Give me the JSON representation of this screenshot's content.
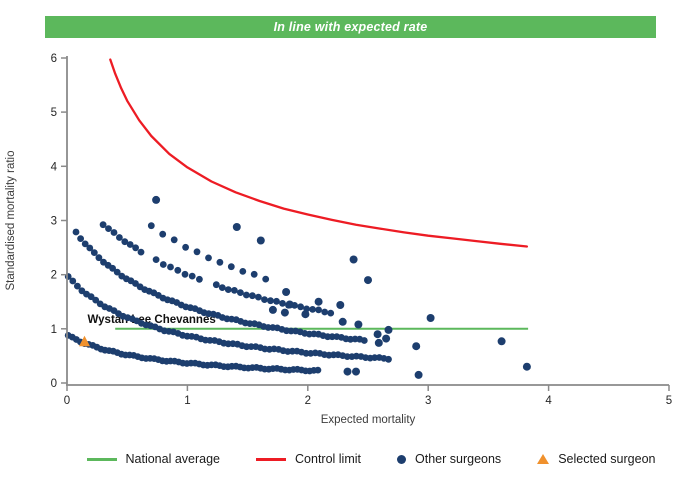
{
  "header": {
    "title": "In line with expected rate",
    "bg_color": "#5CB85C",
    "text_color": "#FFFFFF"
  },
  "chart_data": {
    "type": "scatter",
    "xlabel": "Expected mortality",
    "ylabel": "Standardised mortality ratio",
    "xlim": [
      0,
      5
    ],
    "ylim": [
      0,
      6
    ],
    "x_ticks": [
      0,
      1,
      2,
      3,
      4,
      5
    ],
    "y_ticks": [
      0,
      1,
      2,
      3,
      4,
      5,
      6
    ],
    "grid": false,
    "legend_position": "bottom",
    "annotation": {
      "text": "Wystan Lee Chevannes",
      "x": 0.17,
      "y": 1.18
    },
    "national_average": {
      "label": "National average",
      "y": 1.0,
      "x_start": 0.4,
      "x_end": 3.83,
      "color": "#5CB85C"
    },
    "control_limit": {
      "label": "Control limit",
      "color": "#ED1C24",
      "points": [
        [
          0.36,
          5.97
        ],
        [
          0.4,
          5.71
        ],
        [
          0.45,
          5.44
        ],
        [
          0.5,
          5.21
        ],
        [
          0.6,
          4.85
        ],
        [
          0.7,
          4.56
        ],
        [
          0.85,
          4.23
        ],
        [
          1.0,
          3.98
        ],
        [
          1.2,
          3.72
        ],
        [
          1.4,
          3.52
        ],
        [
          1.6,
          3.36
        ],
        [
          1.8,
          3.22
        ],
        [
          2.0,
          3.11
        ],
        [
          2.2,
          3.01
        ],
        [
          2.4,
          2.92
        ],
        [
          2.6,
          2.85
        ],
        [
          2.8,
          2.78
        ],
        [
          3.0,
          2.72
        ],
        [
          3.2,
          2.67
        ],
        [
          3.4,
          2.62
        ],
        [
          3.6,
          2.57
        ],
        [
          3.82,
          2.52
        ]
      ]
    },
    "selected_surgeon": {
      "label": "Selected surgeon",
      "name": "Wystan Lee Chevannes",
      "x": 0.145,
      "y": 0.76,
      "color": "#F0912D"
    },
    "other_surgeons": {
      "label": "Other surgeons",
      "color": "#1D3E6E",
      "dense_bands": [
        {
          "k": 0.63,
          "c": 0.71,
          "segments": [
            [
              0.01,
              2.1,
              0.034
            ]
          ]
        },
        {
          "k": 1.55,
          "c": 0.78,
          "segments": [
            [
              0.01,
              2.7,
              0.038
            ]
          ]
        },
        {
          "k": 2.63,
          "c": 0.87,
          "segments": [
            [
              0.075,
              2.5,
              0.038
            ]
          ]
        },
        {
          "k": 4.4,
          "c": 1.2,
          "segments": [
            [
              0.3,
              0.64,
              0.045
            ],
            [
              0.74,
              1.1,
              0.06
            ],
            [
              1.24,
              2.2,
              0.05
            ]
          ]
        },
        {
          "k": 5.5,
          "c": 1.2,
          "segments": [
            [
              0.7,
              1.72,
              0.095
            ]
          ]
        }
      ],
      "isolated_points": [
        [
          0.74,
          3.38
        ],
        [
          1.41,
          2.88
        ],
        [
          1.61,
          2.63
        ],
        [
          2.38,
          2.28
        ],
        [
          2.5,
          1.9
        ],
        [
          1.82,
          1.68
        ],
        [
          1.85,
          1.45
        ],
        [
          2.09,
          1.5
        ],
        [
          2.27,
          1.44
        ],
        [
          1.71,
          1.35
        ],
        [
          1.81,
          1.3
        ],
        [
          1.98,
          1.27
        ],
        [
          2.29,
          1.13
        ],
        [
          2.42,
          1.08
        ],
        [
          2.67,
          0.98
        ],
        [
          3.02,
          1.2
        ],
        [
          2.58,
          0.9
        ],
        [
          2.65,
          0.82
        ],
        [
          2.59,
          0.74
        ],
        [
          2.9,
          0.68
        ],
        [
          3.61,
          0.77
        ],
        [
          2.92,
          0.15
        ],
        [
          3.82,
          0.3
        ],
        [
          2.33,
          0.21
        ],
        [
          2.4,
          0.21
        ]
      ]
    },
    "axis_color": "#8A8A8A",
    "tick_text_color": "#262626"
  },
  "legend": {
    "items": [
      {
        "label": "National average",
        "swatch": "line",
        "color": "#5CB85C"
      },
      {
        "label": "Control limit",
        "swatch": "line",
        "color": "#ED1C24"
      },
      {
        "label": "Other surgeons",
        "swatch": "dot",
        "color": "#1D3E6E"
      },
      {
        "label": "Selected surgeon",
        "swatch": "triangle",
        "color": "#F0912D"
      }
    ]
  }
}
